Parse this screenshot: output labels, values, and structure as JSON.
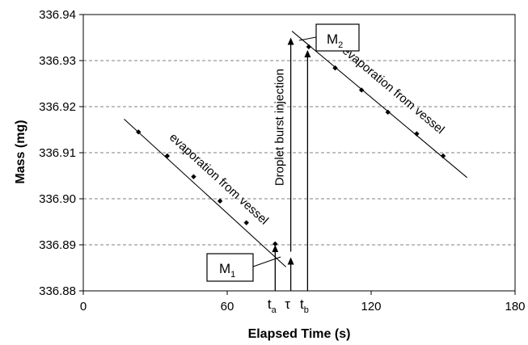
{
  "chart_data": {
    "type": "scatter",
    "title": "",
    "xlabel": "Elapsed Time (s)",
    "ylabel": "Mass (mg)",
    "xlim": [
      0,
      180
    ],
    "ylim": [
      336.88,
      336.94
    ],
    "x_ticks": [
      0,
      60,
      120,
      180
    ],
    "y_ticks": [
      336.88,
      336.89,
      336.9,
      336.91,
      336.92,
      336.93,
      336.94
    ],
    "x_tick_labels": [
      "0",
      "60",
      "120",
      "180"
    ],
    "y_tick_labels": [
      "336.88",
      "336.89",
      "336.90",
      "336.91",
      "336.92",
      "336.93",
      "336.94"
    ],
    "grid": {
      "horizontal": true,
      "style": "dashed"
    },
    "series": [
      {
        "points": [
          [
            23,
            336.9145
          ],
          [
            35,
            336.9093
          ],
          [
            46,
            336.9048
          ],
          [
            57,
            336.8995
          ],
          [
            68,
            336.8948
          ],
          [
            80,
            336.8902
          ]
        ],
        "fit_line": [
          [
            17,
            336.9173
          ],
          [
            84.5,
            336.8852
          ]
        ],
        "annotation": "evaporation from vessel"
      },
      {
        "points": [
          [
            94,
            336.933
          ],
          [
            105,
            336.9284
          ],
          [
            116,
            336.9236
          ],
          [
            127,
            336.9188
          ],
          [
            139,
            336.9141
          ],
          [
            150,
            336.9093
          ]
        ],
        "fit_line": [
          [
            87,
            336.9364
          ],
          [
            160,
            336.9046
          ]
        ],
        "annotation": "evaporation from vessel"
      }
    ],
    "vertical_arrows": [
      {
        "name": "t_a",
        "label": "t",
        "sub": "a",
        "x": 80,
        "y_from": 336.88,
        "y_to": 336.8905
      },
      {
        "name": "tau",
        "label": "τ",
        "x": 86.5,
        "y_from": 336.88,
        "y_to": 336.8878
      },
      {
        "name": "t_b",
        "label": "t",
        "sub": "b",
        "x": 93.5,
        "y_from": 336.88,
        "y_to": 336.9328
      },
      {
        "name": "burst",
        "x": 86.5,
        "y_from": 336.8885,
        "y_to": 336.9355
      }
    ],
    "injection_label": "Droplet burst injection",
    "boxes": [
      {
        "name": "M1",
        "label": "M",
        "sub": "1"
      },
      {
        "name": "M2",
        "label": "M",
        "sub": "2"
      }
    ]
  }
}
